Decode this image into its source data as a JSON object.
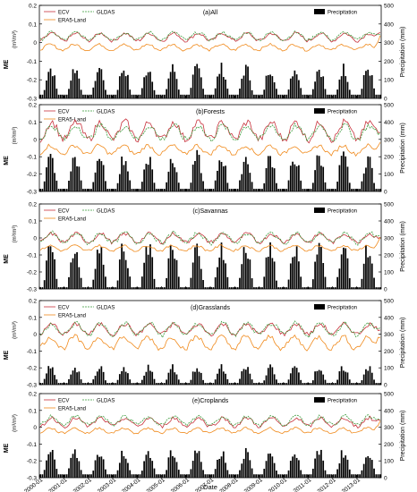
{
  "figure": {
    "xlabel": "Date",
    "x_ticks": [
      "2000-01",
      "2001-01",
      "2002-01",
      "2003-01",
      "2004-01",
      "2005-01",
      "2006-01",
      "2007-01",
      "2008-01",
      "2009-01",
      "2010-01",
      "2011-01",
      "2012-01",
      "2013-01"
    ],
    "left_ylabel": "ME",
    "left_unit": "(m³/m³)",
    "right_ylabel": "Precipitation",
    "right_unit": "(mm)",
    "left_ticks": [
      "0.2",
      "0.1",
      "0",
      "-0.1",
      "-0.2",
      "-0.3"
    ],
    "right_ticks": [
      "500",
      "400",
      "300",
      "200",
      "100",
      "0"
    ],
    "legend": {
      "ecv": "ECV",
      "era5": "ERA5-Land",
      "gldas": "GLDAS",
      "precip": "Precipitation"
    },
    "colors": {
      "ecv": "#c8323c",
      "era5": "#f08a1c",
      "gldas": "#3a9a3a",
      "precip": "#000000"
    }
  },
  "chart_data": [
    {
      "type": "line",
      "title": "(a)All",
      "x_range": [
        "2000-01",
        "2013-12"
      ],
      "ylim": [
        -0.3,
        0.2
      ],
      "y2lim": [
        0,
        500
      ],
      "series": [
        {
          "name": "ECV",
          "axis": "left",
          "mean": 0.03,
          "amplitude": 0.02
        },
        {
          "name": "ERA5-Land",
          "axis": "left",
          "mean": -0.025,
          "amplitude": 0.015
        },
        {
          "name": "GLDAS",
          "axis": "left",
          "mean": 0.035,
          "amplitude": 0.02
        },
        {
          "name": "Precipitation",
          "axis": "right",
          "type": "bar",
          "dry_mm": 20,
          "wet_peak_mm": 160
        }
      ]
    },
    {
      "type": "line",
      "title": "(b)Forests",
      "x_range": [
        "2000-01",
        "2013-12"
      ],
      "ylim": [
        -0.3,
        0.2
      ],
      "y2lim": [
        0,
        500
      ],
      "series": [
        {
          "name": "ECV",
          "axis": "left",
          "mean": 0.05,
          "amplitude": 0.05
        },
        {
          "name": "ERA5-Land",
          "axis": "left",
          "mean": -0.06,
          "amplitude": 0.025
        },
        {
          "name": "GLDAS",
          "axis": "left",
          "mean": 0.04,
          "amplitude": 0.04
        },
        {
          "name": "Precipitation",
          "axis": "right",
          "type": "bar",
          "dry_mm": 15,
          "wet_peak_mm": 195
        }
      ]
    },
    {
      "type": "line",
      "title": "(c)Savannas",
      "x_range": [
        "2000-01",
        "2013-12"
      ],
      "ylim": [
        -0.3,
        0.2
      ],
      "y2lim": [
        0,
        500
      ],
      "series": [
        {
          "name": "ECV",
          "axis": "left",
          "mean": 0.0,
          "amplitude": 0.025
        },
        {
          "name": "ERA5-Land",
          "axis": "left",
          "mean": -0.06,
          "amplitude": 0.015
        },
        {
          "name": "GLDAS",
          "axis": "left",
          "mean": 0.0,
          "amplitude": 0.03
        },
        {
          "name": "Precipitation",
          "axis": "right",
          "type": "bar",
          "dry_mm": 10,
          "wet_peak_mm": 240
        }
      ]
    },
    {
      "type": "line",
      "title": "(d)Grasslands",
      "x_range": [
        "2000-01",
        "2013-12"
      ],
      "ylim": [
        -0.3,
        0.2
      ],
      "y2lim": [
        0,
        500
      ],
      "series": [
        {
          "name": "ECV",
          "axis": "left",
          "mean": 0.03,
          "amplitude": 0.03
        },
        {
          "name": "ERA5-Land",
          "axis": "left",
          "mean": -0.05,
          "amplitude": 0.035
        },
        {
          "name": "GLDAS",
          "axis": "left",
          "mean": 0.03,
          "amplitude": 0.035
        },
        {
          "name": "Precipitation",
          "axis": "right",
          "type": "bar",
          "dry_mm": 10,
          "wet_peak_mm": 100
        }
      ]
    },
    {
      "type": "line",
      "title": "(e)Croplands",
      "x_range": [
        "2000-01",
        "2013-12"
      ],
      "ylim": [
        -0.3,
        0.2
      ],
      "y2lim": [
        0,
        500
      ],
      "series": [
        {
          "name": "ECV",
          "axis": "left",
          "mean": 0.03,
          "amplitude": 0.025
        },
        {
          "name": "ERA5-Land",
          "axis": "left",
          "mean": -0.02,
          "amplitude": 0.015
        },
        {
          "name": "GLDAS",
          "axis": "left",
          "mean": 0.04,
          "amplitude": 0.025
        },
        {
          "name": "Precipitation",
          "axis": "right",
          "type": "bar",
          "dry_mm": 20,
          "wet_peak_mm": 150
        }
      ]
    }
  ]
}
